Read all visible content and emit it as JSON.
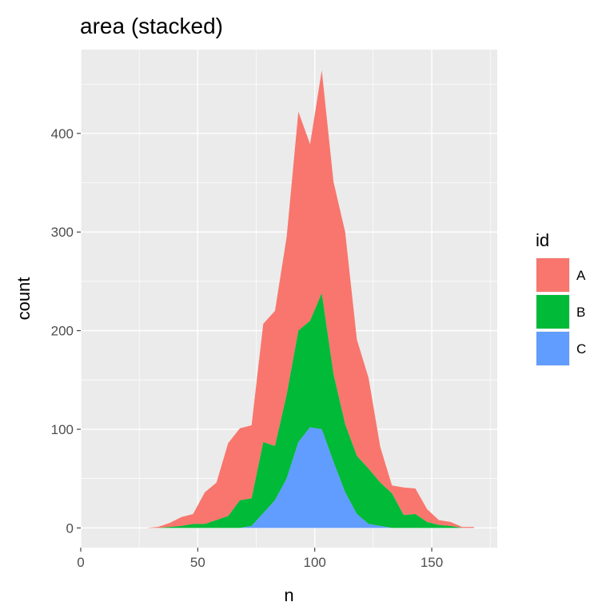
{
  "chart_data": {
    "type": "area",
    "stacked": true,
    "title": "area (stacked)",
    "xlabel": "n",
    "ylabel": "count",
    "xlim": [
      0,
      178
    ],
    "ylim": [
      -20,
      485
    ],
    "x_ticks": [
      0,
      50,
      100,
      150
    ],
    "y_ticks": [
      0,
      100,
      200,
      300,
      400
    ],
    "grid": true,
    "legend": {
      "title": "id",
      "position": "right"
    },
    "x": [
      28,
      33,
      38,
      43,
      48,
      53,
      58,
      63,
      68,
      73,
      78,
      83,
      88,
      93,
      98,
      103,
      108,
      113,
      118,
      123,
      128,
      133,
      138,
      143,
      148,
      153,
      158,
      163,
      168
    ],
    "series": [
      {
        "name": "C",
        "color": "#619CFF",
        "values": [
          0,
          0,
          0,
          0,
          0,
          0,
          0,
          0,
          0,
          2,
          15,
          28,
          50,
          87,
          102,
          100,
          67,
          36,
          14,
          4,
          2,
          0,
          0,
          0,
          0,
          0,
          0,
          0,
          0
        ]
      },
      {
        "name": "B",
        "color": "#00BA38",
        "values": [
          0,
          0,
          1,
          2,
          4,
          4,
          8,
          12,
          28,
          28,
          72,
          55,
          85,
          113,
          108,
          138,
          89,
          69,
          59,
          56,
          44,
          35,
          13,
          14,
          6,
          3,
          2,
          0,
          0
        ]
      },
      {
        "name": "A",
        "color": "#F8766D",
        "values": [
          0,
          1,
          4,
          9,
          10,
          32,
          38,
          74,
          73,
          74,
          120,
          137,
          160,
          222,
          179,
          226,
          195,
          195,
          118,
          92,
          36,
          8,
          28,
          26,
          13,
          5,
          4,
          1,
          1
        ]
      }
    ]
  }
}
